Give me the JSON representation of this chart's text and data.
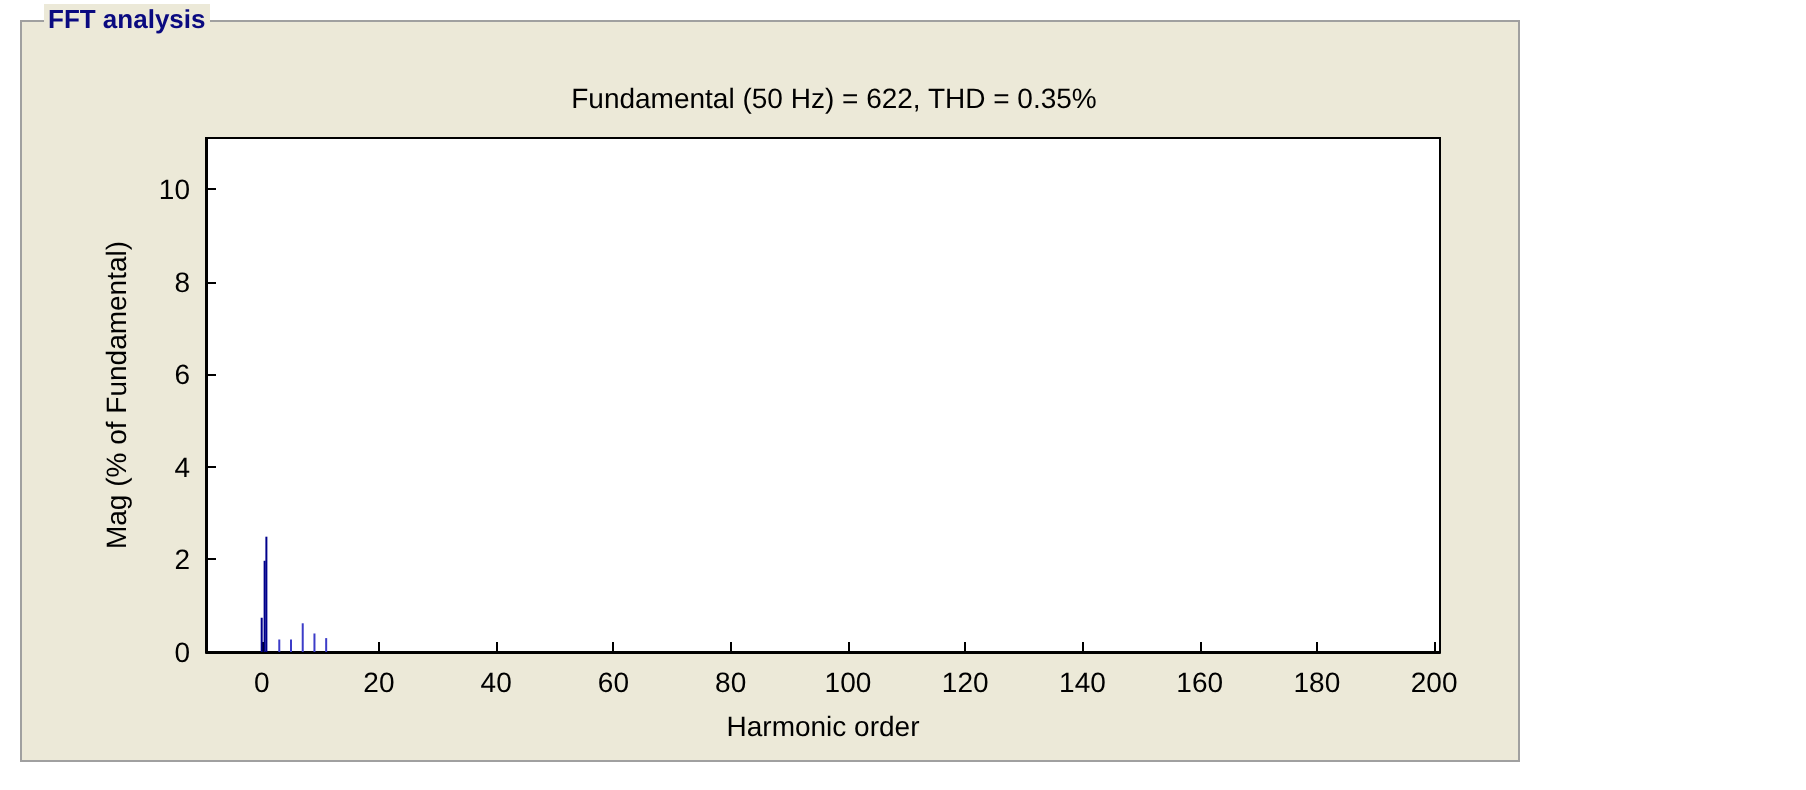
{
  "chart_data": {
    "type": "bar",
    "title": "Fundamental (50 Hz) = 622, THD = 0.35%",
    "xlabel": "Harmonic order",
    "ylabel": "Mag (% of Fundamental)",
    "annotations": [
      "FFT analysis"
    ],
    "x": [
      0,
      0.5,
      0.8,
      1,
      3,
      5,
      7,
      9,
      11
    ],
    "values": [
      0.74,
      1.97,
      2.49,
      null,
      0.27,
      0.27,
      0.62,
      0.4,
      0.3
    ],
    "colors": [
      "#00008b",
      "#00008b",
      "#00008b",
      "#3c3cc8",
      "#3c3cc8",
      "#3c3cc8",
      "#3c3cc8",
      "#3c3cc8",
      "#3c3cc8"
    ],
    "xlim": [
      -9.5,
      201
    ],
    "xticks": [
      0,
      20,
      40,
      60,
      80,
      100,
      120,
      140,
      160,
      180,
      200
    ],
    "ylim": [
      0,
      11.1
    ],
    "yticks": [
      0,
      2,
      4,
      6,
      8,
      10
    ],
    "grid": false
  }
}
